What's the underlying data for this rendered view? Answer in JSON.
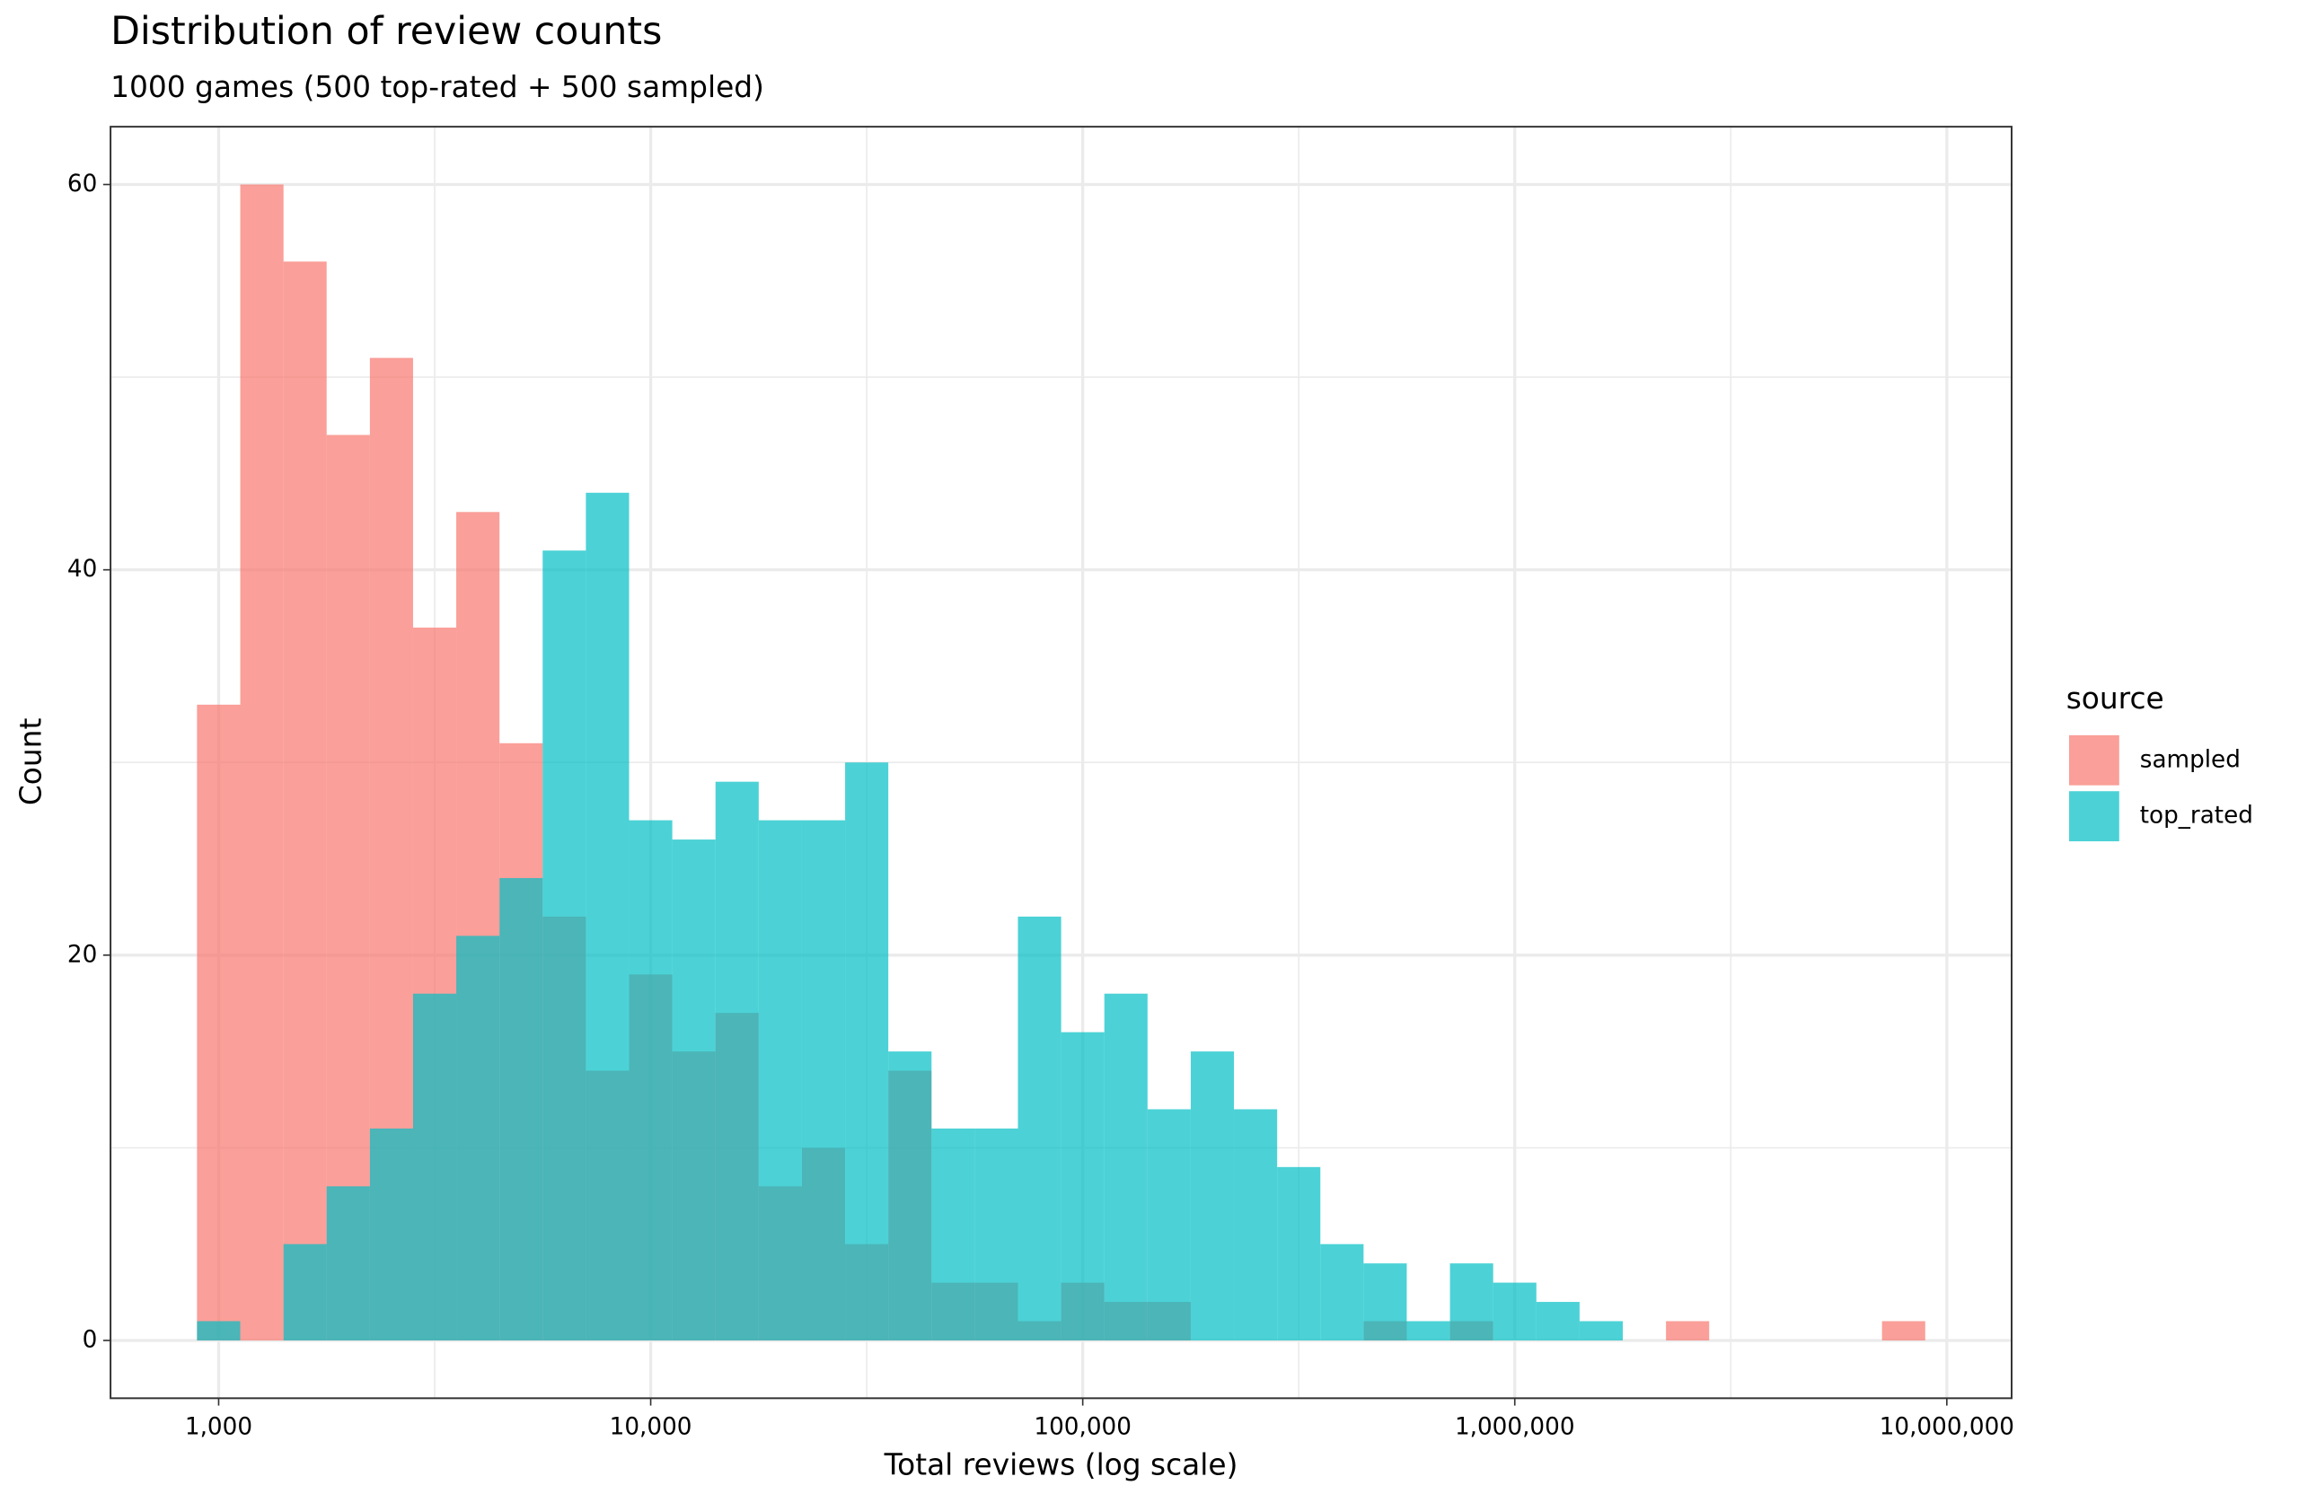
{
  "chart_data": {
    "type": "histogram",
    "title": "Distribution of review counts",
    "subtitle": "1000 games (500 top-rated + 500 sampled)",
    "x_label": "Total reviews (log scale)",
    "y_label": "Count",
    "legend_title": "source",
    "legend_position": "right",
    "xscale": "log",
    "grid": true,
    "alpha": 0.7,
    "bins": [
      891,
      1122,
      1413,
      1778,
      2239,
      2818,
      3548,
      4467,
      5623,
      7079,
      8913,
      11220,
      14125,
      17783,
      22387,
      28184,
      35481,
      44668,
      56234,
      70795,
      89125,
      112202,
      141254,
      177828,
      223872,
      281838,
      354813,
      446684,
      562341,
      707946,
      891251,
      1122018,
      1412538,
      1778279,
      2238721,
      2818383,
      3548134,
      4466836,
      5623413,
      7079458,
      8912509
    ],
    "series": [
      {
        "name": "sampled",
        "color": "#F8766D",
        "values": [
          33,
          60,
          56,
          47,
          51,
          37,
          43,
          31,
          22,
          14,
          19,
          15,
          17,
          8,
          10,
          5,
          14,
          3,
          3,
          1,
          3,
          2,
          2,
          0,
          0,
          0,
          0,
          1,
          0,
          1,
          0,
          0,
          0,
          0,
          1,
          0,
          0,
          0,
          0,
          1
        ]
      },
      {
        "name": "top_rated",
        "color": "#00BFC4",
        "values": [
          1,
          0,
          5,
          8,
          11,
          18,
          21,
          24,
          41,
          44,
          27,
          26,
          29,
          27,
          27,
          30,
          15,
          11,
          11,
          22,
          16,
          18,
          12,
          15,
          12,
          9,
          5,
          4,
          1,
          4,
          3,
          2,
          1,
          0,
          0,
          0,
          0,
          0,
          0,
          0
        ]
      }
    ],
    "xlim": [
      562,
      14125375
    ],
    "xticks": [
      {
        "value": 1000,
        "label": "1,000"
      },
      {
        "value": 10000,
        "label": "10,000"
      },
      {
        "value": 100000,
        "label": "100,000"
      },
      {
        "value": 1000000,
        "label": "1,000,000"
      },
      {
        "value": 10000000,
        "label": "10,000,000"
      }
    ],
    "xminorticks": [
      3162,
      31623,
      316228,
      3162278
    ],
    "ylim": [
      -3,
      63
    ],
    "yticks": [
      0,
      20,
      40,
      60
    ],
    "yminorticks": [
      10,
      30,
      50
    ]
  }
}
